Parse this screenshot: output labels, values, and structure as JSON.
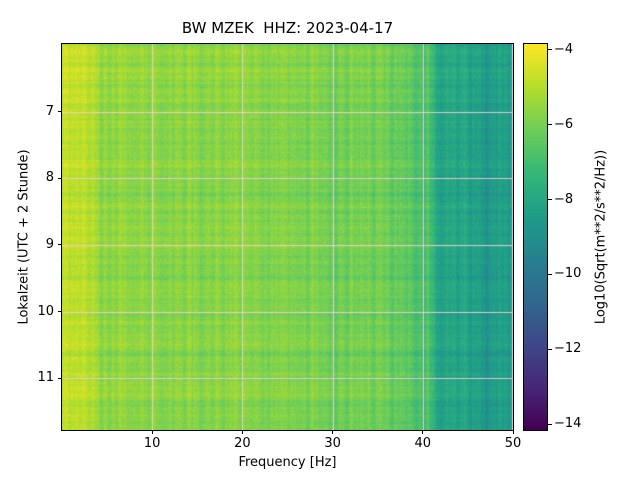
{
  "figure": {
    "background": "#ffffff"
  },
  "chart_data": {
    "type": "heatmap",
    "title": "BW MZEK  HHZ: 2023-04-17",
    "xlabel": "Frequency [Hz]",
    "ylabel": "Lokalzeit (UTC + 2 Stunde)",
    "xlim": [
      0,
      50
    ],
    "x_ticks": [
      10,
      20,
      30,
      40,
      50
    ],
    "ylim_hours": [
      5.98,
      11.78
    ],
    "y_ticks": [
      7,
      8,
      9,
      10,
      11
    ],
    "grid": true,
    "grid_color": "#f2ccd6",
    "colormap": "viridis",
    "colormap_stops": [
      "#440154",
      "#482878",
      "#3e4989",
      "#31688e",
      "#26828e",
      "#1f9e89",
      "#35b779",
      "#6ece58",
      "#b5de2b",
      "#fde725"
    ],
    "colorbar": {
      "label": "Log10(Sqrt(m**2/s**2/Hz))",
      "ticks": [
        -4,
        -6,
        -8,
        -10,
        -12,
        -14
      ],
      "vmax": -3.85,
      "vmin": -14.15
    },
    "freq_profile": [
      [
        0,
        -4.7
      ],
      [
        1,
        -4.8
      ],
      [
        2,
        -4.9
      ],
      [
        3,
        -5.1
      ],
      [
        4,
        -5.5
      ],
      [
        5,
        -5.9
      ],
      [
        6,
        -5.6
      ],
      [
        8,
        -5.6
      ],
      [
        10,
        -5.7
      ],
      [
        14,
        -5.6
      ],
      [
        18,
        -5.7
      ],
      [
        22,
        -5.8
      ],
      [
        26,
        -5.9
      ],
      [
        30,
        -6.0
      ],
      [
        33,
        -6.0
      ],
      [
        36,
        -6.2
      ],
      [
        38,
        -6.4
      ],
      [
        40,
        -6.8
      ],
      [
        41,
        -7.3
      ],
      [
        42,
        -8.0
      ],
      [
        44,
        -8.3
      ],
      [
        46,
        -8.4
      ],
      [
        48,
        -8.4
      ],
      [
        50,
        -8.5
      ]
    ],
    "notes": "Seismic spectrogram: broadband energy near -5.5 to -6.5 below 40 Hz with fine vertical striations, bright yellow band below ~3 Hz, slightly darker band near 4-5 Hz, sharp drop to ~-8.5 (teal) above ~41 Hz. Pale pink gridlines at each labeled tick."
  }
}
